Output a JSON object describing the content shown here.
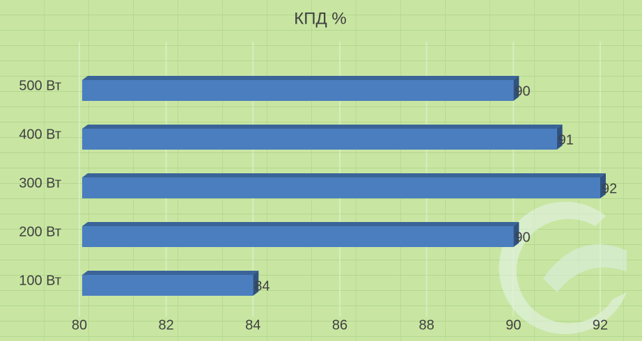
{
  "chart_data": {
    "type": "bar",
    "orientation": "horizontal",
    "title": "КПД %",
    "categories": [
      "500 Вт",
      "400 Вт",
      "300 Вт",
      "200 Вт",
      "100 Вт"
    ],
    "values": [
      90,
      91,
      92,
      90,
      84
    ],
    "color": "#4a7ebf",
    "xlim": [
      80,
      92
    ],
    "xticks": [
      80,
      82,
      84,
      86,
      88,
      90,
      92
    ],
    "grid": true
  }
}
